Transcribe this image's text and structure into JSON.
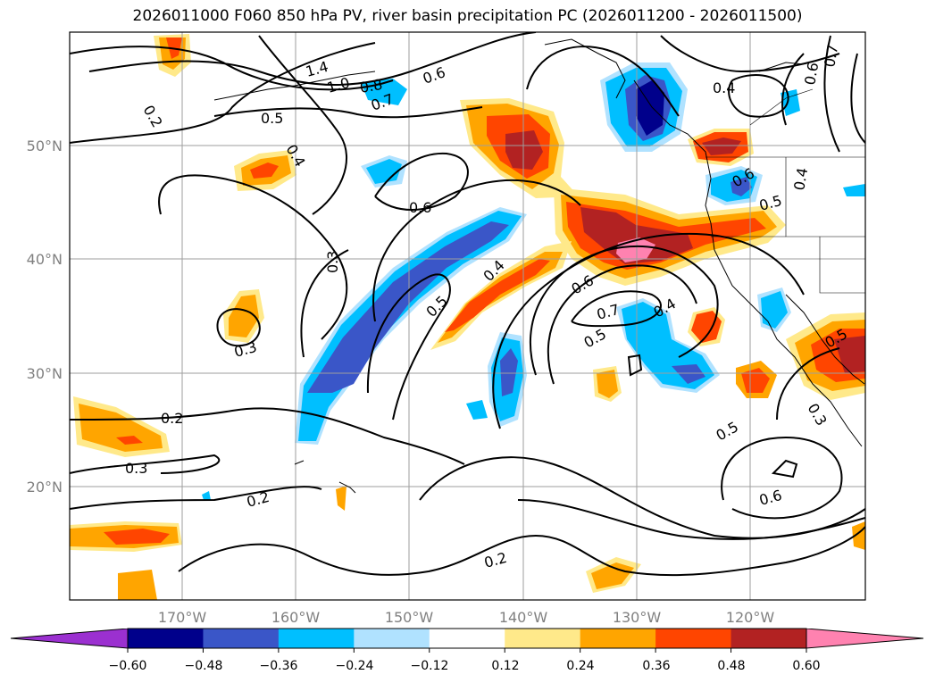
{
  "title": "2026011000 F060 850 hPa PV, river basin precipitation PC (2026011200 - 2026011500)",
  "lat_labels": [
    "50°N",
    "40°N",
    "30°N",
    "20°N"
  ],
  "lon_labels": [
    "170°W",
    "160°W",
    "150°W",
    "140°W",
    "130°W",
    "120°W"
  ],
  "colorbar": {
    "ticks": [
      "−0.60",
      "−0.48",
      "−0.36",
      "−0.24",
      "−0.12",
      "0.12",
      "0.24",
      "0.36",
      "0.48",
      "0.60"
    ],
    "colors": [
      "#9b30d0",
      "#00008b",
      "#3a56c8",
      "#00bfff",
      "#b0e2ff",
      "#ffffff",
      "#ffe98a",
      "#ffa500",
      "#ff4500",
      "#b22222",
      "#ff82b0"
    ]
  },
  "contour_labels": [
    "0.2",
    "1.0",
    "0.8",
    "0.7",
    "0.6",
    "0.5",
    "0.4",
    "0.6",
    "0.3",
    "0.4",
    "0.5",
    "0.3",
    "0.2",
    "0.3",
    "0.2",
    "0.2",
    "0.6",
    "0.7",
    "0.5",
    "0.4",
    "0.5",
    "0.6",
    "0.4",
    "0.6",
    "0.7",
    "0.6",
    "0.5",
    "0.4",
    "0.5",
    "0.3",
    "1.4"
  ]
}
